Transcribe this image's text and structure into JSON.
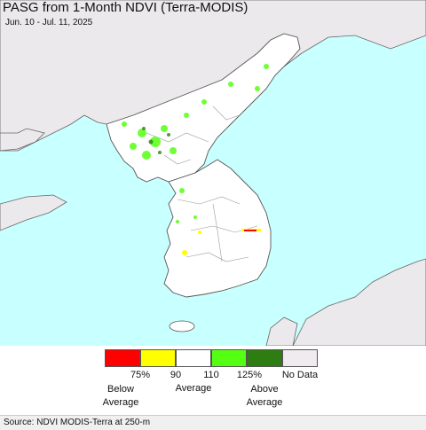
{
  "header": {
    "title": "PASG from 1-Month NDVI (Terra-MODIS)",
    "subtitle": "Jun. 10 - Jul. 11, 2025"
  },
  "map": {
    "region": "Korean Peninsula",
    "colors": {
      "sea": "#c8ffff",
      "land_outside": "#ece9ec",
      "land_korea": "#ffffff",
      "border": "#555555",
      "province": "#999999"
    }
  },
  "legend": {
    "classes": [
      {
        "color": "#ff0000",
        "name": "below-75"
      },
      {
        "color": "#ffff00",
        "name": "75-90"
      },
      {
        "color": "#ffffff",
        "name": "90-110"
      },
      {
        "color": "#55ff11",
        "name": "110-125"
      },
      {
        "color": "#2e7d13",
        "name": "above-125"
      },
      {
        "color": "#efebef",
        "name": "no-data"
      }
    ],
    "ticks": [
      "75%",
      "90",
      "110",
      "125%"
    ],
    "below": "Below\nAverage",
    "average": "Average",
    "above": "Above\nAverage",
    "nodata": "No Data"
  },
  "footer": {
    "source": "Source: NDVI MODIS-Terra at 250-m"
  }
}
